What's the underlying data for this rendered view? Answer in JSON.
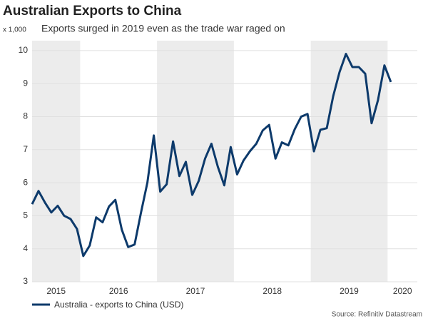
{
  "chart_data": {
    "type": "line",
    "title": "Australian Exports to China",
    "subtitle": "Exports surged in 2019 even as the trade war raged on",
    "y_unit_label": "x 1,000",
    "source": "Source: Refinitiv Datastream",
    "year_bands": [
      {
        "label": "2015",
        "shaded": true
      },
      {
        "label": "2016",
        "shaded": false
      },
      {
        "label": "2017",
        "shaded": true
      },
      {
        "label": "2018",
        "shaded": false
      },
      {
        "label": "2019",
        "shaded": true
      },
      {
        "label": "2020",
        "shaded": false
      }
    ],
    "series": [
      {
        "name": "Australia - exports to China (USD)",
        "color": "#0d3a6b",
        "values": [
          5.35,
          5.75,
          5.4,
          5.1,
          5.3,
          5.0,
          4.9,
          4.6,
          3.78,
          4.1,
          4.95,
          4.8,
          5.28,
          5.48,
          4.58,
          4.05,
          4.13,
          5.1,
          6.0,
          7.43,
          5.73,
          5.95,
          7.25,
          6.2,
          6.63,
          5.63,
          6.05,
          6.73,
          7.18,
          6.48,
          5.92,
          7.08,
          6.25,
          6.67,
          6.95,
          7.18,
          7.58,
          7.75,
          6.73,
          7.22,
          7.13,
          7.62,
          8.0,
          8.08,
          6.95,
          7.6,
          7.65,
          8.62,
          9.35,
          9.9,
          9.5,
          9.5,
          9.3,
          7.8,
          8.5,
          9.55,
          9.05
        ]
      }
    ],
    "ylim": [
      3,
      10.3
    ],
    "yticks": [
      3,
      4,
      5,
      6,
      7,
      8,
      9,
      10
    ],
    "grid": true,
    "band_color": "#ececec"
  }
}
